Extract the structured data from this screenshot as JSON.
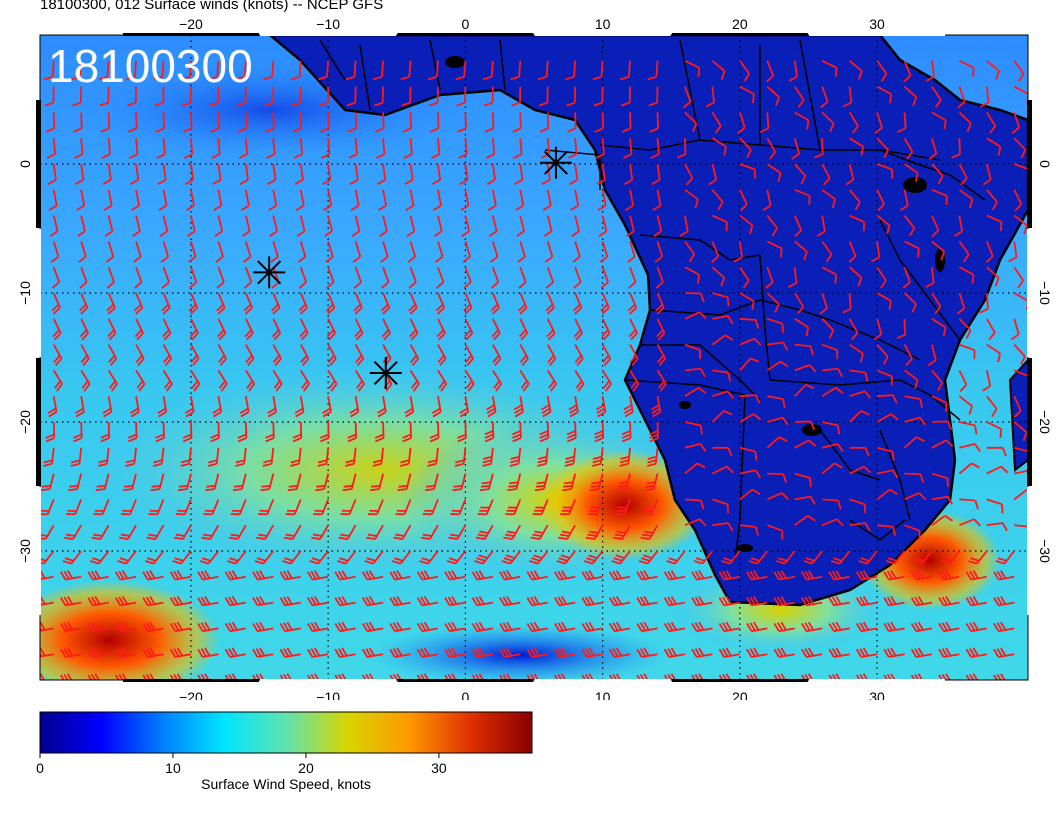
{
  "title": "18100300, 012 Surface winds (knots) -- NCEP GFS",
  "stamp": "18100300",
  "map": {
    "lon_range": [
      -31,
      41
    ],
    "lat_range": [
      -40,
      10
    ],
    "lon_ticks": [
      "−20",
      "−10",
      "0",
      "10",
      "20",
      "30"
    ],
    "lon_tick_values": [
      -20,
      -10,
      0,
      10,
      20,
      30
    ],
    "lat_ticks": [
      "0",
      "−10",
      "−20",
      "−30"
    ],
    "lat_tick_values": [
      0,
      -10,
      -20,
      -30
    ],
    "barb_color": "#ff1a1a",
    "coastline_color": "#000000",
    "markers": [
      {
        "name": "storm-marker-1",
        "lon": -14.3,
        "lat": -8.4
      },
      {
        "name": "storm-marker-2",
        "lon": -5.8,
        "lat": -16.2
      },
      {
        "name": "storm-marker-3",
        "lon": 6.6,
        "lat": 0.1
      }
    ]
  },
  "colorbar": {
    "label": "Surface Wind Speed, knots",
    "ticks": [
      "0",
      "10",
      "20",
      "30"
    ],
    "tick_values": [
      0,
      10,
      20,
      30
    ],
    "max": 37,
    "colors": [
      "#00008f",
      "#0000ff",
      "#0080ff",
      "#00e5ff",
      "#5fe3b0",
      "#d6d600",
      "#ff9900",
      "#e03000",
      "#8a0000"
    ]
  }
}
